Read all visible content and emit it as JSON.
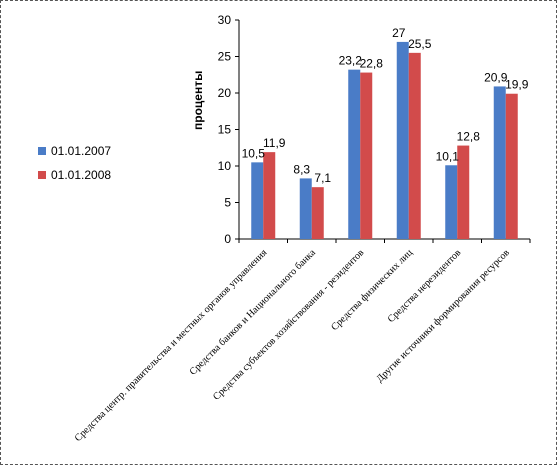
{
  "colors": {
    "series1": "#4a7cc7",
    "series2": "#d24b4b",
    "axis": "#000000"
  },
  "chart_data": {
    "type": "bar",
    "categories": [
      "Средства центр. правительства и местных органов управления",
      "Средства банков и Национального банка",
      "Средства субъектов хозяйствования - резидентов",
      "Средства физических лиц",
      "Средства нерезидентов",
      "Другие источники формирования ресурсов"
    ],
    "series": [
      {
        "name": "01.01.2007",
        "values": [
          10.5,
          8.3,
          23.2,
          27,
          10.1,
          20.9
        ],
        "labels": [
          "10,5",
          "8,3",
          "23,2",
          "27",
          "10,1",
          "20,9"
        ]
      },
      {
        "name": "01.01.2008",
        "values": [
          11.9,
          7.1,
          22.8,
          25.5,
          12.8,
          19.9
        ],
        "labels": [
          "11,9",
          "7,1",
          "22,8",
          "25,5",
          "12,8",
          "19,9"
        ]
      }
    ],
    "ylabel": "проценты",
    "ylim": [
      0,
      30
    ],
    "yticks": [
      0,
      5,
      10,
      15,
      20,
      25,
      30
    ],
    "grid": false,
    "legend": "left"
  }
}
